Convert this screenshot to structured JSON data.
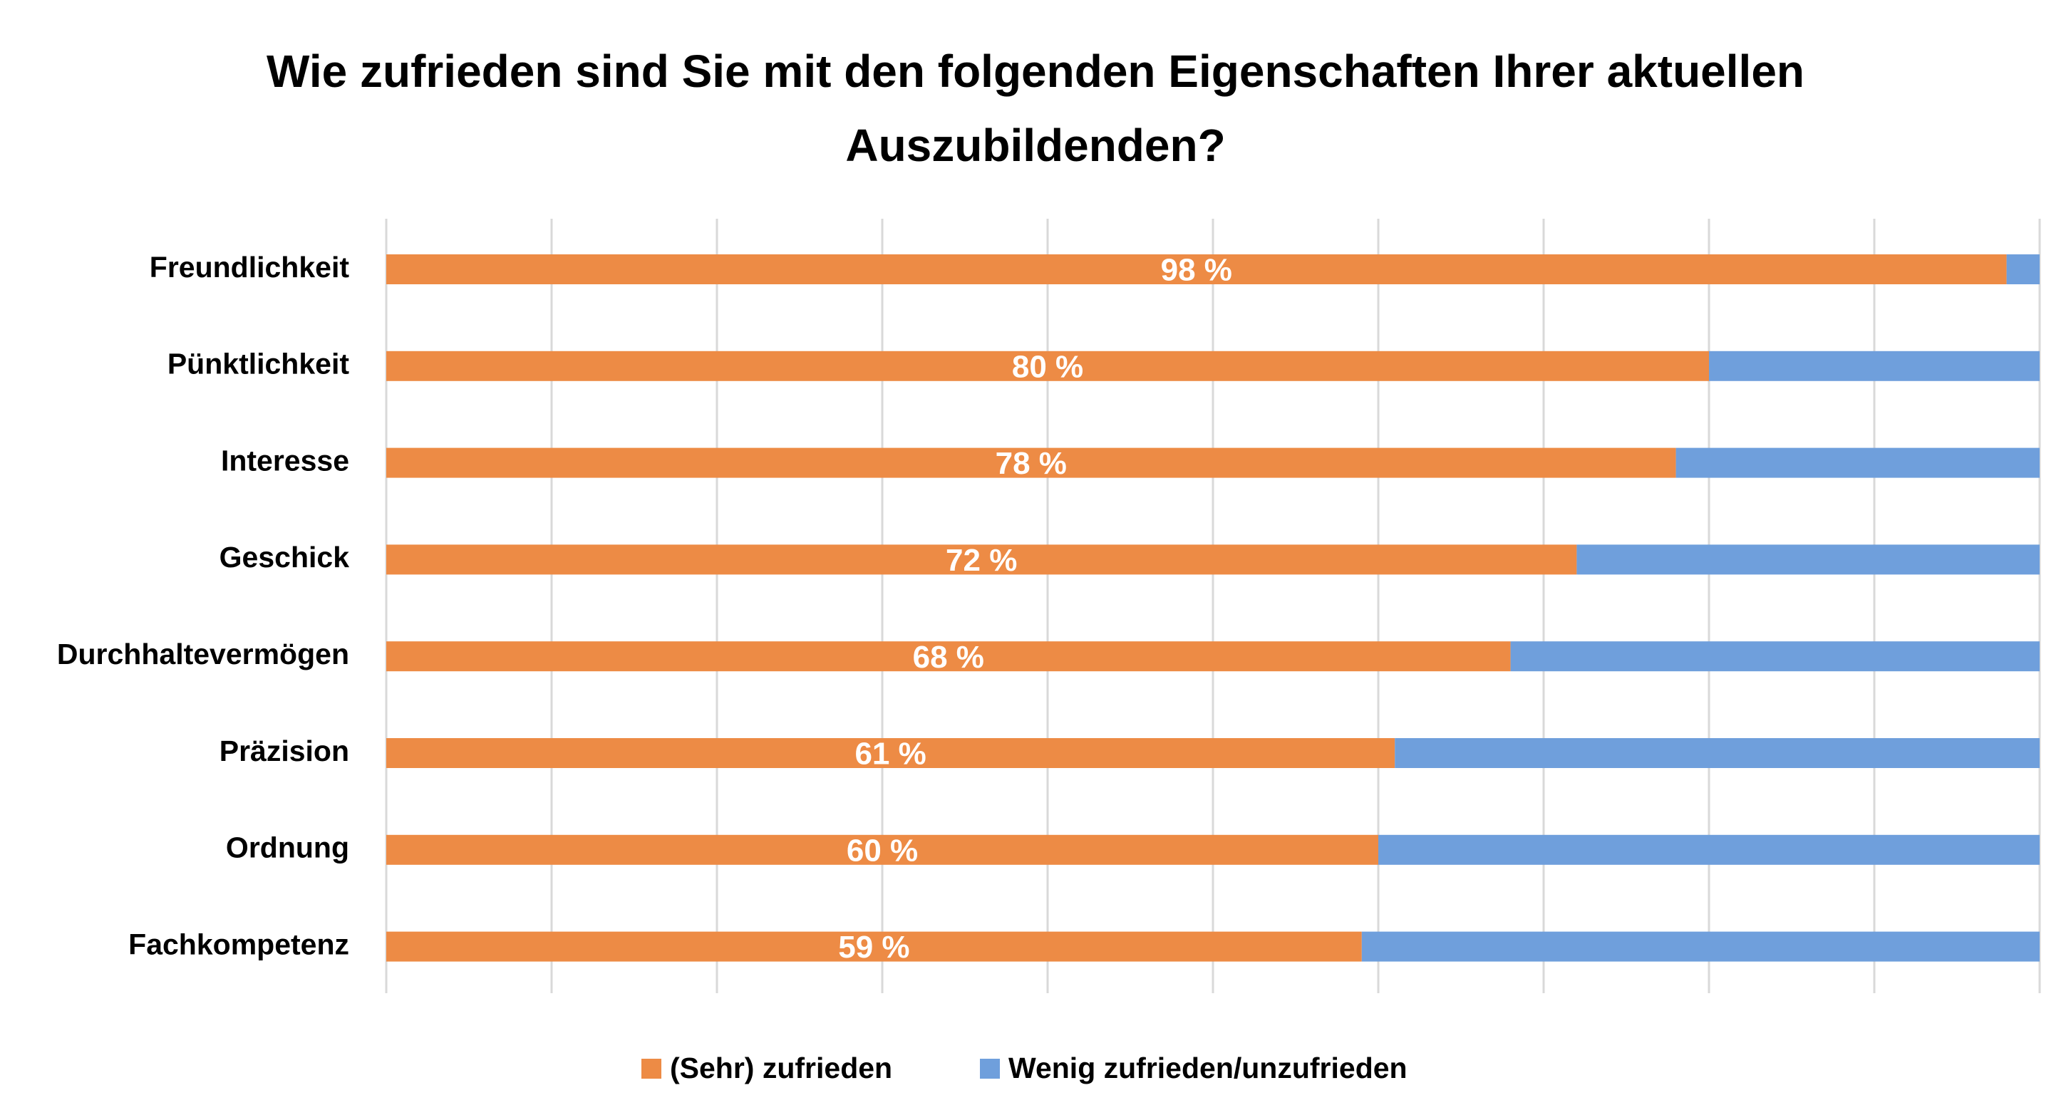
{
  "chart_data": {
    "type": "stacked-bar-horizontal",
    "title": "Wie zufrieden sind Sie mit den folgenden Eigenschaften Ihrer aktuellen Auszubildenden?",
    "categories": [
      "Freundlichkeit",
      "Pünktlichkeit",
      "Interesse",
      "Geschick",
      "Durchhaltevermögen",
      "Präzision",
      "Ordnung",
      "Fachkompetenz"
    ],
    "series": [
      {
        "name": "(Sehr) zufrieden",
        "color": "#ed8b45",
        "values": [
          98,
          80,
          78,
          72,
          68,
          61,
          60,
          59
        ],
        "value_labels": [
          "98 %",
          "80 %",
          "78 %",
          "72 %",
          "68 %",
          "61 %",
          "60 %",
          "59 %"
        ]
      },
      {
        "name": "Wenig zufrieden/unzufrieden",
        "color": "#6f9fdc",
        "values": [
          2,
          20,
          22,
          28,
          32,
          39,
          40,
          41
        ]
      }
    ],
    "xlim": [
      0,
      100
    ],
    "xticks": [
      0,
      10,
      20,
      30,
      40,
      50,
      60,
      70,
      80,
      90,
      100
    ],
    "tick_labels": false,
    "grid": true,
    "legend": "bottom"
  }
}
